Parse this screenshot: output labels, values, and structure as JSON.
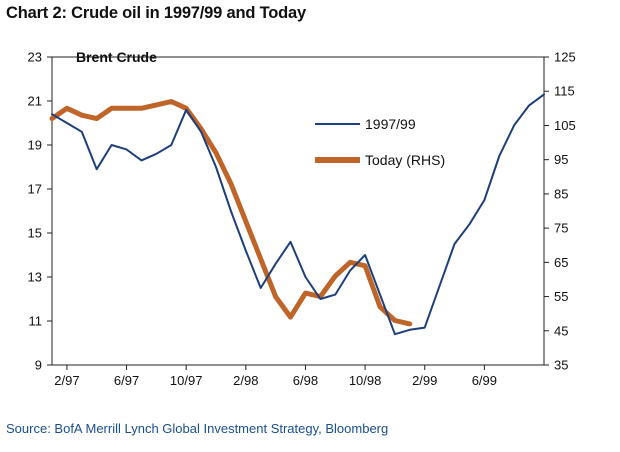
{
  "title": "Chart 2: Crude oil in 1997/99 and Today",
  "source": "Source: BofA Merrill Lynch Global Investment Strategy, Bloomberg",
  "chart_data": {
    "type": "line",
    "chart_label": "Brent Crude",
    "x_ticks": [
      "2/97",
      "6/97",
      "10/97",
      "2/98",
      "6/98",
      "10/98",
      "2/99",
      "6/99"
    ],
    "x_range": [
      "1997-01",
      "1999-10"
    ],
    "y_left": {
      "ylim": [
        9,
        23
      ],
      "ticks": [
        9,
        11,
        13,
        15,
        17,
        19,
        21,
        23
      ]
    },
    "y_right": {
      "ylim": [
        35,
        125
      ],
      "ticks": [
        35,
        45,
        55,
        65,
        75,
        85,
        95,
        105,
        115,
        125
      ]
    },
    "legend_position": "center-right",
    "series": [
      {
        "name": "1997/99",
        "axis": "left",
        "color": "#1f3f7a",
        "x": [
          "1997-01",
          "1997-02",
          "1997-03",
          "1997-04",
          "1997-05",
          "1997-06",
          "1997-07",
          "1997-08",
          "1997-09",
          "1997-10",
          "1997-11",
          "1997-12",
          "1998-01",
          "1998-02",
          "1998-03",
          "1998-04",
          "1998-05",
          "1998-06",
          "1998-07",
          "1998-08",
          "1998-09",
          "1998-10",
          "1998-11",
          "1998-12",
          "1999-01",
          "1999-02",
          "1999-03",
          "1999-04",
          "1999-05",
          "1999-06",
          "1999-07",
          "1999-08",
          "1999-09",
          "1999-10"
        ],
        "y": [
          20.4,
          20.0,
          19.6,
          17.9,
          19.0,
          18.8,
          18.3,
          18.6,
          19.0,
          20.6,
          19.6,
          18.0,
          16.0,
          14.2,
          12.5,
          13.6,
          14.6,
          13.0,
          12.0,
          12.2,
          13.3,
          14.0,
          12.2,
          10.4,
          10.6,
          10.7,
          12.6,
          14.5,
          15.4,
          16.5,
          18.5,
          19.9,
          20.8,
          21.3
        ]
      },
      {
        "name": "Today (RHS)",
        "axis": "right",
        "color": "#c0652a",
        "x": [
          "1997-01",
          "1997-02",
          "1997-03",
          "1997-04",
          "1997-05",
          "1997-06",
          "1997-07",
          "1997-08",
          "1997-09",
          "1997-10",
          "1997-11",
          "1997-12",
          "1998-01",
          "1998-02",
          "1998-03",
          "1998-04",
          "1998-05",
          "1998-06",
          "1998-07",
          "1998-08",
          "1998-09",
          "1998-10",
          "1998-11",
          "1998-12",
          "1999-01"
        ],
        "y": [
          107,
          110,
          108,
          107,
          110,
          110,
          110,
          111,
          112,
          110,
          104,
          97,
          88,
          77,
          66,
          55,
          49,
          56,
          55,
          61,
          65,
          64,
          52,
          48,
          47
        ]
      }
    ]
  }
}
